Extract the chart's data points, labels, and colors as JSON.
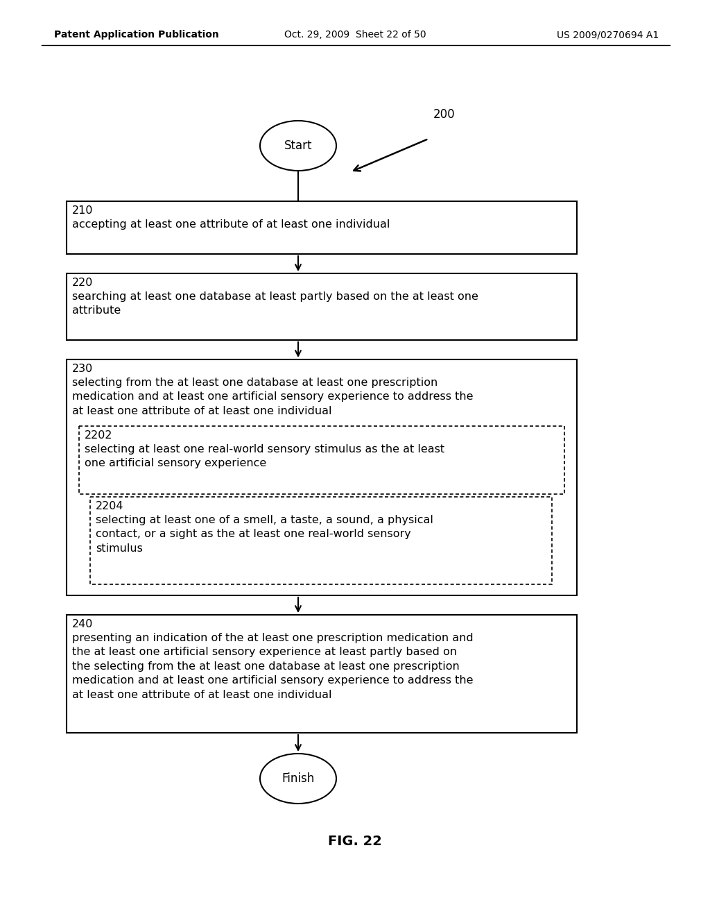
{
  "header_left": "Patent Application Publication",
  "header_mid": "Oct. 29, 2009  Sheet 22 of 50",
  "header_right": "US 2009/0270694 A1",
  "diagram_label": "200",
  "start_label": "Start",
  "finish_label": "Finish",
  "fig_label": "FIG. 22",
  "box210_num": "210",
  "box210_text": "accepting at least one attribute of at least one individual",
  "box220_num": "220",
  "box220_text": "searching at least one database at least partly based on the at least one\nattribute",
  "box230_num": "230",
  "box230_text": "selecting from the at least one database at least one prescription\nmedication and at least one artificial sensory experience to address the\nat least one attribute of at least one individual",
  "box2202_num": "2202",
  "box2202_text": "selecting at least one real-world sensory stimulus as the at least\none artificial sensory experience",
  "box2204_num": "2204",
  "box2204_text": "selecting at least one of a smell, a taste, a sound, a physical\ncontact, or a sight as the at least one real-world sensory\nstimulus",
  "box240_num": "240",
  "box240_text": "presenting an indication of the at least one prescription medication and\nthe at least one artificial sensory experience at least partly based on\nthe selecting from the at least one database at least one prescription\nmedication and at least one artificial sensory experience to address the\nat least one attribute of at least one individual",
  "bg_color": "#ffffff",
  "text_color": "#000000"
}
